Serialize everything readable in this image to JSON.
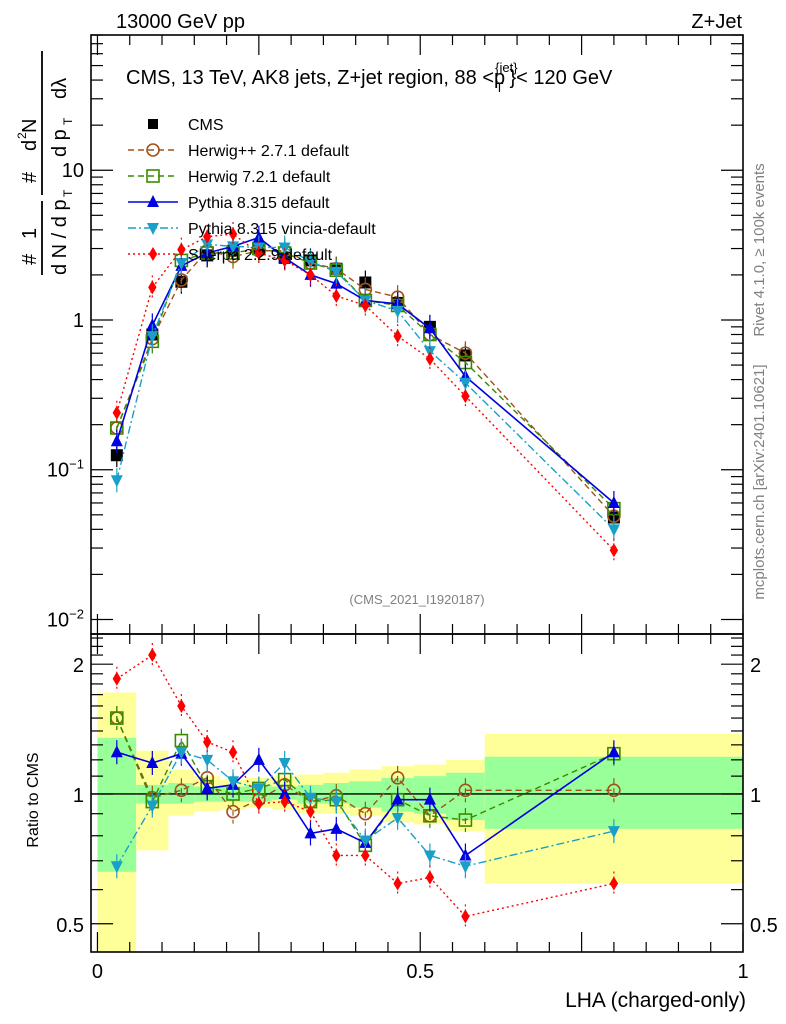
{
  "header": {
    "left_label": "13000 GeV pp",
    "right_label": "Z+Jet"
  },
  "side_labels": {
    "rivet": "Rivet 4.1.0, ≥ 100k events",
    "mcplots": "mcplots.cern.ch [arXiv:2401.10621]"
  },
  "chart_data": [
    {
      "type": "line",
      "panel": "main",
      "title": "CMS, 13 TeV, AK8 jets, Z+jet region, 88 <p_T^{jet}< 120 GeV",
      "title_parts": {
        "prefix": "CMS, 13 TeV, AK8 jets, Z+jet region, 88 <p",
        "sup": "{jet}",
        "sub": "T",
        "suffix": "}< 120 GeV"
      },
      "ylabel": "1/dN/dp_T  d²N/(dp_T dλ)",
      "xlabel": "",
      "yscale": "log",
      "ylim": [
        0.008,
        80
      ],
      "xlim": [
        -0.01,
        1.0
      ],
      "yticks": [
        {
          "v": 0.01,
          "base": "10",
          "exp": "−2"
        },
        {
          "v": 0.1,
          "base": "10",
          "exp": "−1"
        },
        {
          "v": 1,
          "label": "1"
        },
        {
          "v": 10,
          "label": "10"
        }
      ],
      "watermark": "(CMS_2021_I1920187)",
      "legend_position": "top-left",
      "x": [
        0.03,
        0.085,
        0.13,
        0.17,
        0.21,
        0.25,
        0.29,
        0.33,
        0.37,
        0.415,
        0.465,
        0.515,
        0.57,
        0.8
      ],
      "series": [
        {
          "name": "CMS",
          "color": "#000000",
          "marker": "square-filled",
          "line": "none",
          "values": [
            0.125,
            0.8,
            1.8,
            2.7,
            2.9,
            3.0,
            2.6,
            2.5,
            2.2,
            1.78,
            1.3,
            0.9,
            0.58,
            0.048
          ]
        },
        {
          "name": "Herwig++ 2.7.1 default",
          "color": "#a0521c",
          "marker": "circle-open",
          "line": "dashed",
          "values": [
            0.19,
            0.75,
            1.85,
            2.9,
            2.65,
            2.9,
            2.9,
            2.4,
            2.2,
            1.6,
            1.42,
            0.8,
            0.6,
            0.049
          ]
        },
        {
          "name": "Herwig 7.2.1 default",
          "color": "#3a8a00",
          "marker": "square-open",
          "line": "dashed",
          "values": [
            0.19,
            0.72,
            2.5,
            2.8,
            2.8,
            3.0,
            2.8,
            2.4,
            2.15,
            1.35,
            1.25,
            0.8,
            0.52,
            0.055
          ]
        },
        {
          "name": "Pythia 8.315 default",
          "color": "#0000e0",
          "marker": "triangle-up-filled",
          "line": "solid",
          "values": [
            0.155,
            0.92,
            2.3,
            2.8,
            3.1,
            3.55,
            2.6,
            2.0,
            1.75,
            1.35,
            1.28,
            0.88,
            0.42,
            0.06
          ]
        },
        {
          "name": "Pythia 8.315 vincia-default",
          "color": "#1aa0c8",
          "marker": "triangle-down-filled",
          "line": "dashdot",
          "values": [
            0.085,
            0.78,
            2.4,
            3.2,
            3.1,
            3.05,
            3.05,
            2.45,
            2.1,
            1.35,
            1.15,
            0.62,
            0.38,
            0.04
          ]
        },
        {
          "name": "Sherpa 2.2.9 default",
          "color": "#ff0000",
          "marker": "diamond-filled",
          "line": "dotted",
          "values": [
            0.24,
            1.65,
            2.95,
            3.6,
            3.75,
            2.8,
            2.5,
            2.0,
            1.45,
            1.25,
            0.78,
            0.55,
            0.31,
            0.029
          ]
        }
      ]
    },
    {
      "type": "line",
      "panel": "ratio",
      "ylabel": "Ratio to CMS",
      "xlabel": "LHA (charged-only)",
      "yscale": "log",
      "ylim": [
        0.43,
        2.35
      ],
      "xlim": [
        -0.01,
        1.0
      ],
      "yticks": [
        {
          "v": 0.5,
          "label": "0.5"
        },
        {
          "v": 1,
          "label": "1"
        },
        {
          "v": 2,
          "label": "2"
        }
      ],
      "xticks": [
        {
          "v": 0,
          "label": "0"
        },
        {
          "v": 0.5,
          "label": "0.5"
        },
        {
          "v": 1,
          "label": "1"
        }
      ],
      "bands": {
        "bins": [
          [
            0,
            0.06
          ],
          [
            0.06,
            0.11
          ],
          [
            0.11,
            0.15
          ],
          [
            0.15,
            0.19
          ],
          [
            0.19,
            0.23
          ],
          [
            0.23,
            0.27
          ],
          [
            0.27,
            0.31
          ],
          [
            0.31,
            0.35
          ],
          [
            0.35,
            0.39
          ],
          [
            0.39,
            0.44
          ],
          [
            0.44,
            0.49
          ],
          [
            0.49,
            0.54
          ],
          [
            0.54,
            0.6
          ],
          [
            0.6,
            1.0
          ]
        ],
        "inner_color": "#99ff99",
        "outer_color": "#ffff99",
        "inner": [
          [
            0.66,
            1.35
          ],
          [
            0.95,
            1.05
          ],
          [
            0.95,
            1.06
          ],
          [
            0.96,
            1.04
          ],
          [
            0.96,
            1.04
          ],
          [
            0.96,
            1.05
          ],
          [
            0.97,
            1.04
          ],
          [
            0.95,
            1.05
          ],
          [
            0.95,
            1.06
          ],
          [
            0.93,
            1.07
          ],
          [
            0.91,
            1.09
          ],
          [
            0.9,
            1.1
          ],
          [
            0.87,
            1.12
          ],
          [
            0.83,
            1.22
          ]
        ],
        "outer": [
          [
            0.41,
            1.72
          ],
          [
            0.74,
            1.26
          ],
          [
            0.89,
            1.14
          ],
          [
            0.91,
            1.1
          ],
          [
            0.92,
            1.08
          ],
          [
            0.93,
            1.09
          ],
          [
            0.92,
            1.1
          ],
          [
            0.9,
            1.11
          ],
          [
            0.9,
            1.12
          ],
          [
            0.89,
            1.14
          ],
          [
            0.86,
            1.16
          ],
          [
            0.85,
            1.17
          ],
          [
            0.82,
            1.2
          ],
          [
            0.62,
            1.38
          ]
        ]
      },
      "x": [
        0.03,
        0.085,
        0.13,
        0.17,
        0.21,
        0.25,
        0.29,
        0.33,
        0.37,
        0.415,
        0.465,
        0.515,
        0.57,
        0.8
      ],
      "series": [
        {
          "name": "Herwig++ 2.7.1 default",
          "color": "#a0521c",
          "marker": "circle-open",
          "line": "dashed",
          "values": [
            1.5,
            0.98,
            1.02,
            1.09,
            0.91,
            0.97,
            1.05,
            0.96,
            0.99,
            0.9,
            1.09,
            0.89,
            1.02,
            1.02
          ]
        },
        {
          "name": "Herwig 7.2.1 default",
          "color": "#3a8a00",
          "marker": "square-open",
          "line": "dashed",
          "values": [
            1.5,
            0.96,
            1.33,
            1.04,
            1.0,
            1.03,
            1.08,
            0.96,
            0.97,
            0.76,
            0.97,
            0.89,
            0.87,
            1.24
          ]
        },
        {
          "name": "Pythia 8.315 default",
          "color": "#0000e0",
          "marker": "triangle-up-filled",
          "line": "solid",
          "values": [
            1.25,
            1.18,
            1.24,
            1.03,
            1.05,
            1.2,
            1.0,
            0.81,
            0.83,
            0.77,
            0.97,
            0.97,
            0.72,
            1.25
          ]
        },
        {
          "name": "Pythia 8.315 vincia-default",
          "color": "#1aa0c8",
          "marker": "triangle-down-filled",
          "line": "dashdot",
          "values": [
            0.68,
            0.94,
            1.25,
            1.2,
            1.07,
            1.03,
            1.18,
            0.98,
            0.96,
            0.78,
            0.88,
            0.72,
            0.68,
            0.82
          ]
        },
        {
          "name": "Sherpa 2.2.9 default",
          "color": "#ff0000",
          "marker": "diamond-filled",
          "line": "dotted",
          "values": [
            1.85,
            2.1,
            1.6,
            1.32,
            1.25,
            0.95,
            0.96,
            0.91,
            0.72,
            0.72,
            0.62,
            0.64,
            0.52,
            0.62
          ]
        }
      ]
    }
  ]
}
